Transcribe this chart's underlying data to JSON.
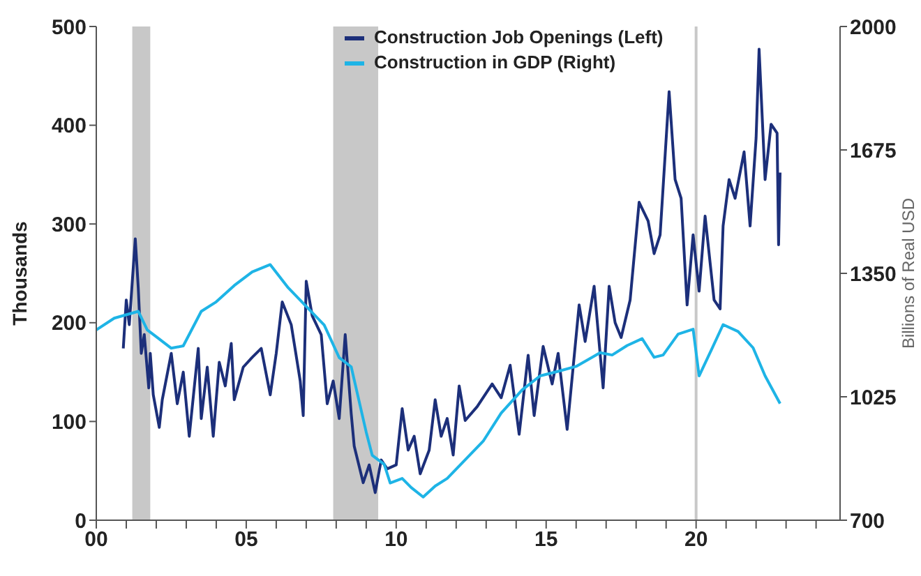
{
  "chart_data": {
    "type": "line",
    "ylabel": "Thousands",
    "y2label": "Billions of Real USD",
    "xlim": [
      2000,
      2024.8
    ],
    "xticks": [
      {
        "value": 2000,
        "label": "00"
      },
      {
        "value": 2001,
        "label": null
      },
      {
        "value": 2002,
        "label": null
      },
      {
        "value": 2003,
        "label": null
      },
      {
        "value": 2004,
        "label": null
      },
      {
        "value": 2005,
        "label": "05"
      },
      {
        "value": 2006,
        "label": null
      },
      {
        "value": 2007,
        "label": null
      },
      {
        "value": 2008,
        "label": null
      },
      {
        "value": 2009,
        "label": null
      },
      {
        "value": 2010,
        "label": "10"
      },
      {
        "value": 2011,
        "label": null
      },
      {
        "value": 2012,
        "label": null
      },
      {
        "value": 2013,
        "label": null
      },
      {
        "value": 2014,
        "label": null
      },
      {
        "value": 2015,
        "label": "15"
      },
      {
        "value": 2016,
        "label": null
      },
      {
        "value": 2017,
        "label": null
      },
      {
        "value": 2018,
        "label": null
      },
      {
        "value": 2019,
        "label": null
      },
      {
        "value": 2020,
        "label": "20"
      },
      {
        "value": 2021,
        "label": null
      },
      {
        "value": 2022,
        "label": null
      },
      {
        "value": 2023,
        "label": null
      },
      {
        "value": 2024,
        "label": null
      }
    ],
    "ylim": [
      0,
      500
    ],
    "yticks": [
      0,
      100,
      200,
      300,
      400,
      500
    ],
    "y2lim": [
      700,
      2000
    ],
    "y2ticks": [
      700,
      1025,
      1350,
      1675,
      2000
    ],
    "legend": "top",
    "marker": "none",
    "line_style": "solid",
    "bands": [
      {
        "axis": "x",
        "from": 2001.2,
        "to": 2001.8,
        "color": "#c8c8c8"
      },
      {
        "axis": "x",
        "from": 2007.9,
        "to": 2009.4,
        "color": "#c8c8c8"
      }
    ],
    "ref_lines": [
      {
        "axis": "x",
        "value": 2020,
        "color": "#c8c8c8"
      }
    ],
    "series": [
      {
        "name": "Construction Job Openings (Left)",
        "color": "#1c2f7a",
        "x": [
          2000.9,
          2001.0,
          2001.1,
          2001.3,
          2001.4,
          2001.5,
          2001.6,
          2001.75,
          2001.8,
          2001.9,
          2002.1,
          2002.2,
          2002.5,
          2002.7,
          2002.9,
          2003.1,
          2003.4,
          2003.5,
          2003.7,
          2003.9,
          2004.1,
          2004.3,
          2004.5,
          2004.6,
          2004.9,
          2005.2,
          2005.5,
          2005.8,
          2006.0,
          2006.2,
          2006.5,
          2006.8,
          2006.9,
          2007.0,
          2007.2,
          2007.5,
          2007.7,
          2007.9,
          2008.1,
          2008.3,
          2008.5,
          2008.6,
          2008.9,
          2009.1,
          2009.3,
          2009.5,
          2009.7,
          2010.0,
          2010.2,
          2010.4,
          2010.6,
          2010.8,
          2011.1,
          2011.3,
          2011.5,
          2011.7,
          2011.9,
          2012.1,
          2012.3,
          2012.7,
          2013.2,
          2013.5,
          2013.8,
          2014.1,
          2014.4,
          2014.6,
          2014.9,
          2015.2,
          2015.4,
          2015.7,
          2016.1,
          2016.3,
          2016.6,
          2016.9,
          2017.1,
          2017.3,
          2017.5,
          2017.8,
          2018.1,
          2018.4,
          2018.6,
          2018.8,
          2019.1,
          2019.3,
          2019.5,
          2019.7,
          2019.9,
          2020.1,
          2020.3,
          2020.6,
          2020.8,
          2020.9,
          2021.1,
          2021.3,
          2021.6,
          2021.8,
          2022.0,
          2022.1,
          2022.3,
          2022.5,
          2022.7,
          2022.75,
          2022.8
        ],
        "values": [
          174,
          223,
          198,
          285,
          235,
          169,
          188,
          134,
          169,
          127,
          94,
          122,
          169,
          118,
          150,
          85,
          174,
          103,
          155,
          85,
          160,
          136,
          179,
          122,
          155,
          165,
          174,
          127,
          169,
          221,
          198,
          141,
          106,
          242,
          207,
          188,
          118,
          141,
          103,
          188,
          108,
          75,
          38,
          56,
          28,
          61,
          52,
          56,
          113,
          71,
          85,
          47,
          71,
          122,
          85,
          103,
          66,
          136,
          101,
          115,
          138,
          124,
          157,
          87,
          167,
          106,
          176,
          138,
          169,
          92,
          218,
          181,
          237,
          134,
          237,
          200,
          185,
          223,
          322,
          303,
          270,
          289,
          434,
          345,
          326,
          218,
          289,
          232,
          308,
          223,
          214,
          298,
          345,
          326,
          373,
          298,
          387,
          477,
          345,
          401,
          392,
          279,
          352
        ]
      },
      {
        "name": "Construction in GDP (Right)",
        "color": "#1eb4e6",
        "axis": "y2",
        "x": [
          2000.0,
          2000.6,
          2001.4,
          2001.7,
          2002.0,
          2002.5,
          2002.9,
          2003.5,
          2004.0,
          2004.6,
          2005.2,
          2005.8,
          2006.4,
          2007.0,
          2007.6,
          2008.1,
          2008.5,
          2009.0,
          2009.2,
          2009.6,
          2009.8,
          2010.2,
          2010.5,
          2010.9,
          2011.3,
          2011.7,
          2012.3,
          2012.9,
          2013.5,
          2014.2,
          2014.8,
          2015.4,
          2016.0,
          2016.8,
          2017.2,
          2017.7,
          2018.2,
          2018.6,
          2018.9,
          2019.4,
          2019.9,
          2020.1,
          2020.5,
          2020.9,
          2021.4,
          2021.9,
          2022.3,
          2022.8
        ],
        "values": [
          1201,
          1232,
          1250,
          1201,
          1183,
          1153,
          1159,
          1250,
          1275,
          1318,
          1354,
          1373,
          1312,
          1263,
          1214,
          1128,
          1104,
          932,
          871,
          847,
          798,
          810,
          786,
          761,
          790,
          810,
          859,
          908,
          982,
          1043,
          1080,
          1092,
          1105,
          1141,
          1135,
          1160,
          1178,
          1129,
          1135,
          1190,
          1203,
          1080,
          1147,
          1215,
          1197,
          1154,
          1080,
          1007
        ]
      }
    ]
  }
}
